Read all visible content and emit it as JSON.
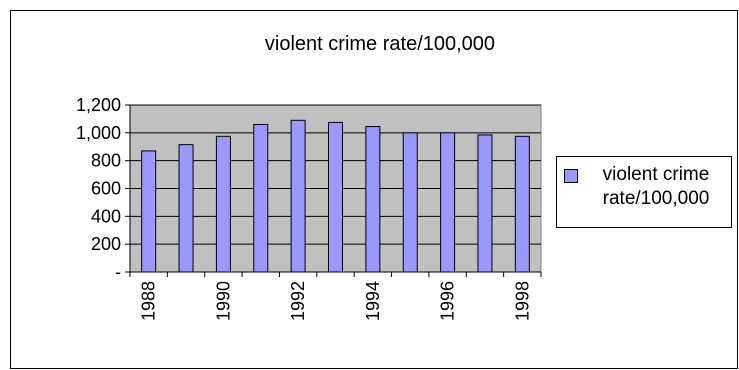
{
  "chart_data": {
    "type": "bar",
    "title": "violent crime rate/100,000",
    "categories": [
      "1988",
      "1989",
      "1990",
      "1991",
      "1992",
      "1993",
      "1994",
      "1995",
      "1996",
      "1997",
      "1998"
    ],
    "x_tick_labels": [
      "1988",
      "1990",
      "1992",
      "1994",
      "1996",
      "1998"
    ],
    "series": [
      {
        "name": "violent crime rate/100,000",
        "values": [
          870,
          915,
          975,
          1060,
          1090,
          1075,
          1045,
          1000,
          1000,
          985,
          975
        ]
      }
    ],
    "y_tick_labels": [
      "-",
      "200",
      "400",
      "600",
      "800",
      "1,000",
      "1,200"
    ],
    "ylim": [
      0,
      1200
    ],
    "ystep": 200,
    "grid": true,
    "legend": "right",
    "colors": {
      "bar": "#9999ff",
      "plot_background": "#c0c0c0",
      "border": "#000000"
    }
  }
}
